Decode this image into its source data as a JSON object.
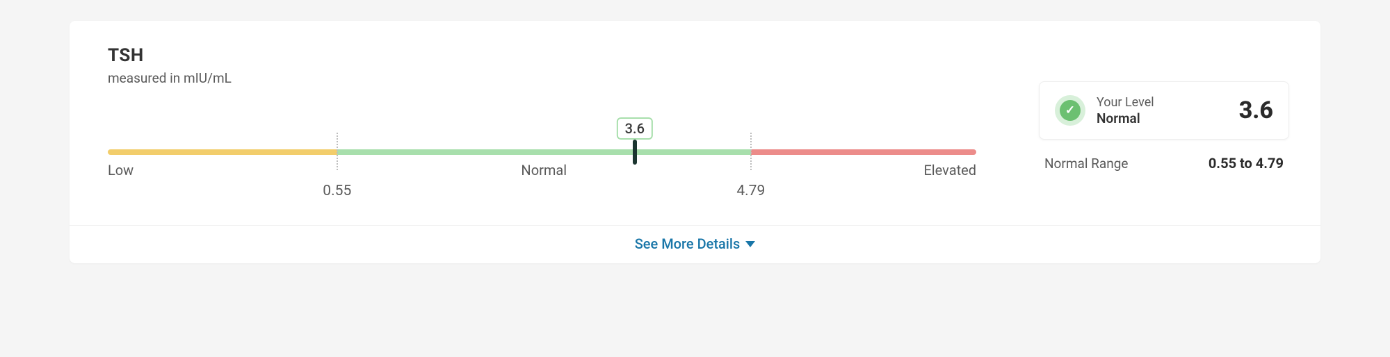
{
  "biomarker": {
    "name": "TSH",
    "units_prefix": "measured in",
    "units": "mIU/mL",
    "value": 3.6,
    "value_display": "3.6",
    "status": "Normal",
    "your_level_label": "Your Level"
  },
  "range": {
    "low_bound": 0.55,
    "high_bound": 4.79,
    "low_bound_display": "0.55",
    "high_bound_display": "4.79",
    "normal_range_label": "Normal Range",
    "normal_range_display": "0.55 to 4.79",
    "display_min": -1.8,
    "display_max": 7.1
  },
  "regions": {
    "low_label": "Low",
    "normal_label": "Normal",
    "elevated_label": "Elevated"
  },
  "colors": {
    "low_bar": "#f2cd6b",
    "normal_bar": "#a8dfac",
    "elevated_bar": "#ec8c8a",
    "marker": "#1b3530",
    "badge_border": "#a8dfac",
    "badge_text": "#3a3a3a",
    "check_outer": "#d8f0da",
    "check_inner": "#6cc071",
    "link": "#1976a8",
    "card_bg": "#ffffff",
    "page_bg": "#f5f5f5",
    "text_muted": "#5a5a5a",
    "text_strong": "#2a2a2a"
  },
  "actions": {
    "see_more": "See More Details"
  }
}
